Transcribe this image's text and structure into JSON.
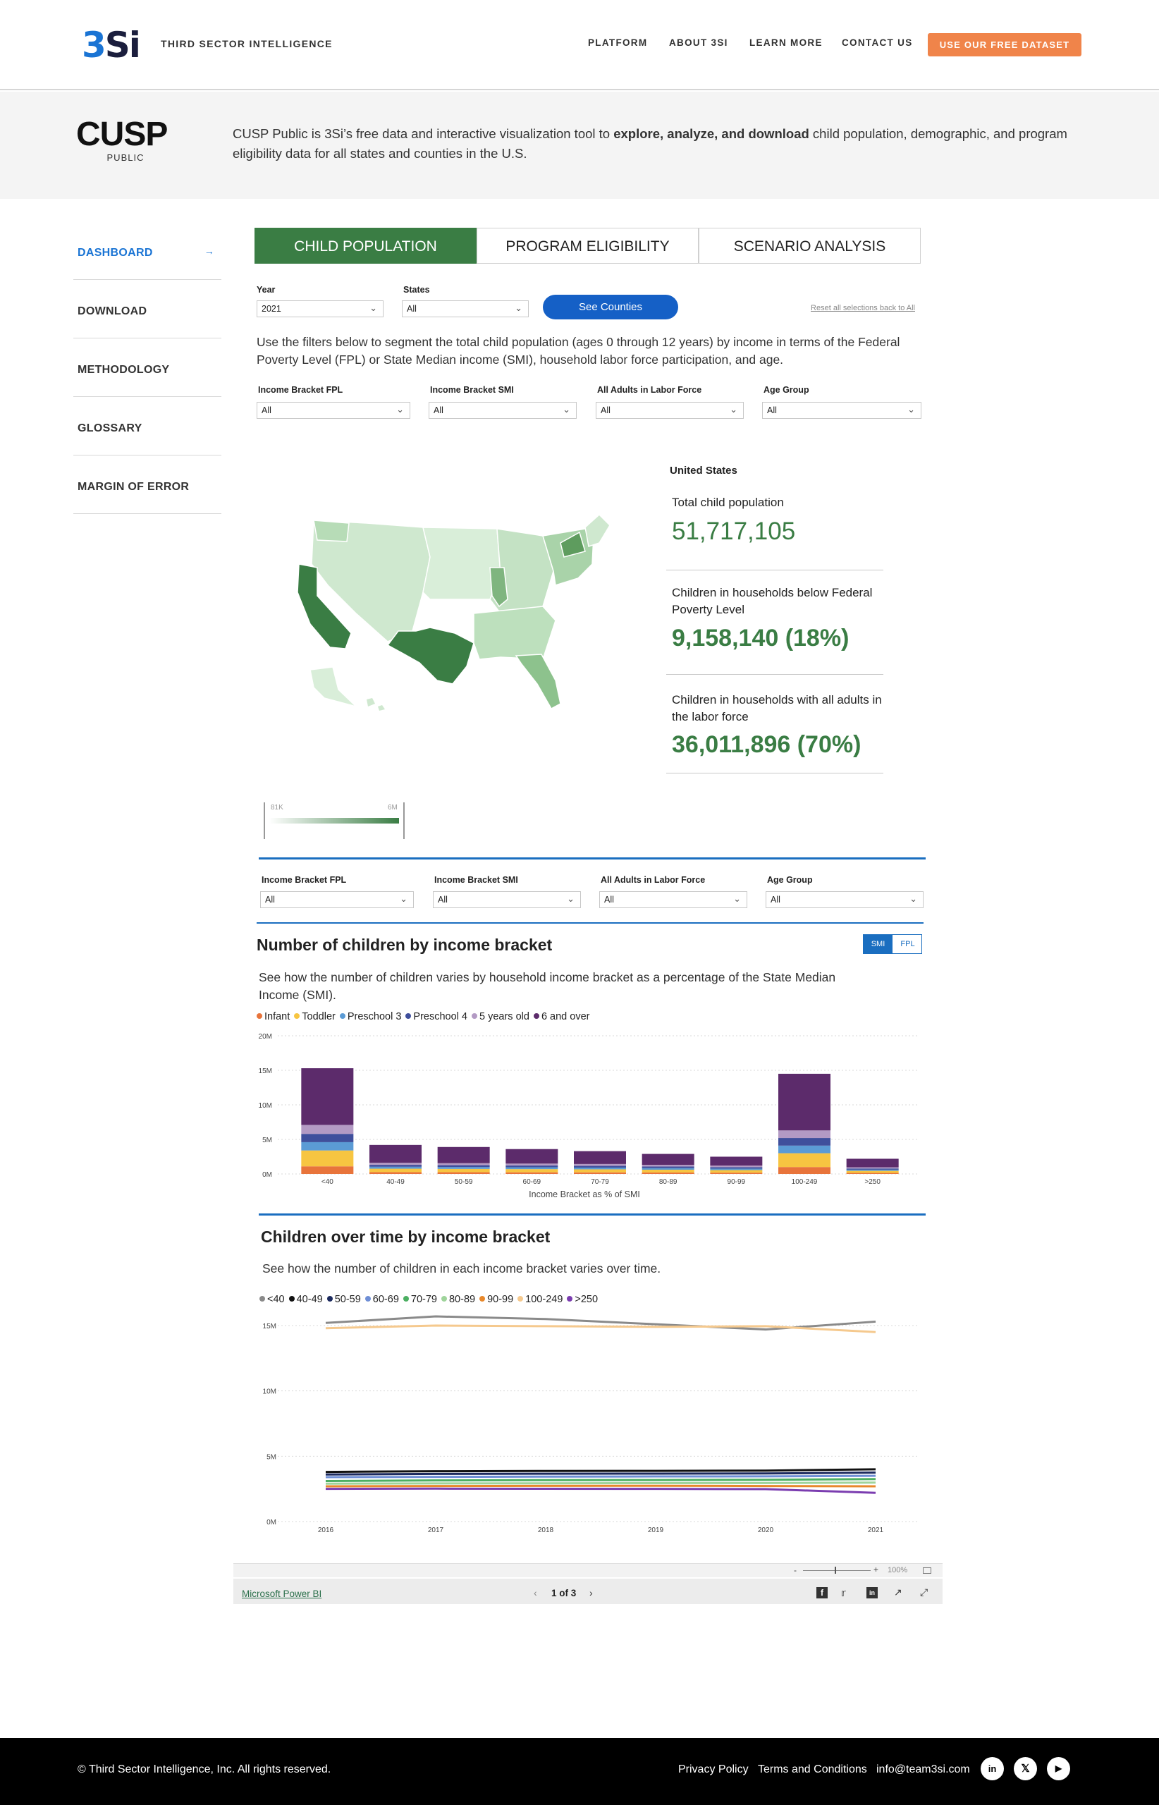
{
  "header": {
    "logo_number": "3",
    "logo_letters": "Si",
    "tagline": "THIRD SECTOR INTELLIGENCE",
    "nav": [
      "PLATFORM",
      "ABOUT 3SI",
      "LEARN MORE",
      "CONTACT US"
    ],
    "cta_label": "USE OUR FREE DATASET",
    "cta_color": "#f0844a",
    "brand_blue": "#1a74d4"
  },
  "intro": {
    "logo_text": "CUSP",
    "logo_sub": "PUBLIC",
    "text_before": "CUSP Public is 3Si’s free data and interactive visualization tool to ",
    "text_bold": "explore, analyze, and download",
    "text_after": " child population, demographic, and program eligibility data for all states and counties in the U.S."
  },
  "sidebar": {
    "items": [
      {
        "label": "DASHBOARD",
        "active": true
      },
      {
        "label": "DOWNLOAD"
      },
      {
        "label": "METHODOLOGY"
      },
      {
        "label": "GLOSSARY"
      },
      {
        "label": "MARGIN OF ERROR"
      }
    ],
    "arrow_icon": "arrow-right-icon"
  },
  "report": {
    "tabs": [
      "CHILD POPULATION",
      "PROGRAM ELIGIBILITY",
      "SCENARIO ANALYSIS"
    ],
    "accent_green": "#3a7d44",
    "year_label": "Year",
    "year_value": "2021",
    "states_label": "States",
    "states_value": "All",
    "see_counties": "See Counties",
    "reset": "Reset all selections back to All",
    "description": "Use the filters below to segment the total child population (ages 0 through 12 years) by income in terms of the Federal Poverty Level (FPL) or State Median income (SMI), household labor force participation, and age.",
    "filters": [
      {
        "label": "Income Bracket FPL",
        "value": "All"
      },
      {
        "label": "Income Bracket SMI",
        "value": "All"
      },
      {
        "label": "All Adults in Labor Force",
        "value": "All"
      },
      {
        "label": "Age Group",
        "value": "All"
      }
    ],
    "region": "United States",
    "stats": [
      {
        "label": "Total child population",
        "value": "51,717,105"
      },
      {
        "label": "Children in households below Federal Poverty Level",
        "value": "9,158,140 (18%)"
      },
      {
        "label": "Children in households with all adults in the labor force",
        "value": "36,011,896 (70%)"
      }
    ],
    "map_legend": {
      "min": "81K",
      "max": "6M"
    },
    "filters2": [
      {
        "label": "Income Bracket FPL",
        "value": "All"
      },
      {
        "label": "Income Bracket SMI",
        "value": "All"
      },
      {
        "label": "All Adults in Labor Force",
        "value": "All"
      },
      {
        "label": "Age Group",
        "value": "All"
      }
    ],
    "bar_section": {
      "title": "Number of children by income bracket",
      "desc": "See how the number of children varies by household income bracket as a percentage of the State Median Income (SMI).",
      "toggle": [
        "SMI",
        "FPL"
      ]
    },
    "line_section": {
      "title": "Children over time by income bracket",
      "desc": "See how the number of children in each income bracket varies over time."
    }
  },
  "chart_data": [
    {
      "type": "bar",
      "stacked": true,
      "title": "Number of children by income bracket",
      "xlabel": "Income Bracket as % of SMI",
      "ylabel": "",
      "categories": [
        "<40",
        "40-49",
        "50-59",
        "60-69",
        "70-79",
        "80-89",
        "90-99",
        "100-249",
        ">250"
      ],
      "ylim": [
        0,
        20000000
      ],
      "yticks": [
        "0M",
        "5M",
        "10M",
        "15M",
        "20M"
      ],
      "legend_position": "top-left",
      "grid": true,
      "series": [
        {
          "name": "Infant",
          "color": "#e8743b",
          "values": [
            1100000,
            260000,
            250000,
            240000,
            230000,
            210000,
            190000,
            1000000,
            150000
          ]
        },
        {
          "name": "Toddler",
          "color": "#f7c541",
          "values": [
            2300000,
            500000,
            480000,
            460000,
            440000,
            400000,
            370000,
            2000000,
            300000
          ]
        },
        {
          "name": "Preschool 3",
          "color": "#5b9bd5",
          "values": [
            1200000,
            280000,
            270000,
            260000,
            250000,
            230000,
            210000,
            1100000,
            170000
          ]
        },
        {
          "name": "Preschool 4",
          "color": "#3f4f9c",
          "values": [
            1200000,
            280000,
            270000,
            260000,
            250000,
            230000,
            210000,
            1100000,
            170000
          ]
        },
        {
          "name": "5 years old",
          "color": "#b39ac4",
          "values": [
            1300000,
            300000,
            290000,
            280000,
            270000,
            250000,
            230000,
            1100000,
            180000
          ]
        },
        {
          "name": "6 and over",
          "color": "#5c2b6b",
          "values": [
            8200000,
            2580000,
            2340000,
            2100000,
            1860000,
            1580000,
            1290000,
            8200000,
            1230000
          ]
        }
      ]
    },
    {
      "type": "line",
      "title": "Children over time by income bracket",
      "x": [
        "2016",
        "2017",
        "2018",
        "2019",
        "2020",
        "2021"
      ],
      "ylim": [
        0,
        15000000
      ],
      "yticks": [
        "0M",
        "5M",
        "10M",
        "15M"
      ],
      "legend_position": "top-left",
      "grid": true,
      "series": [
        {
          "name": "<40",
          "color": "#8a8a8a",
          "values": [
            15200000,
            15700000,
            15500000,
            15100000,
            14700000,
            15300000
          ]
        },
        {
          "name": "40-49",
          "color": "#111111",
          "values": [
            3800000,
            3850000,
            3870000,
            3880000,
            3900000,
            4000000
          ]
        },
        {
          "name": "50-59",
          "color": "#1c2a5e",
          "values": [
            3600000,
            3650000,
            3660000,
            3670000,
            3680000,
            3750000
          ]
        },
        {
          "name": "60-69",
          "color": "#6f8fd6",
          "values": [
            3400000,
            3420000,
            3440000,
            3450000,
            3460000,
            3500000
          ]
        },
        {
          "name": "70-79",
          "color": "#4caf62",
          "values": [
            3100000,
            3150000,
            3170000,
            3180000,
            3200000,
            3250000
          ]
        },
        {
          "name": "80-89",
          "color": "#9fd49b",
          "values": [
            2900000,
            2920000,
            2930000,
            2940000,
            2950000,
            2980000
          ]
        },
        {
          "name": "90-99",
          "color": "#e8882b",
          "values": [
            2700000,
            2720000,
            2730000,
            2740000,
            2720000,
            2700000
          ]
        },
        {
          "name": "100-249",
          "color": "#f5c98e",
          "values": [
            14800000,
            15000000,
            14950000,
            14900000,
            14950000,
            14500000
          ]
        },
        {
          "name": ">250",
          "color": "#7b3db0",
          "values": [
            2500000,
            2520000,
            2510000,
            2500000,
            2480000,
            2200000
          ]
        }
      ]
    }
  ],
  "powerbi": {
    "link": "Microsoft Power BI",
    "page": "1 of 3",
    "zoom": "100%"
  },
  "footer": {
    "copyright": "© Third Sector Intelligence, Inc. All rights reserved.",
    "links": [
      "Privacy Policy",
      "Terms and Conditions",
      "info@team3si.com"
    ],
    "social_icons": [
      "linkedin-icon",
      "x-icon",
      "youtube-icon"
    ]
  }
}
